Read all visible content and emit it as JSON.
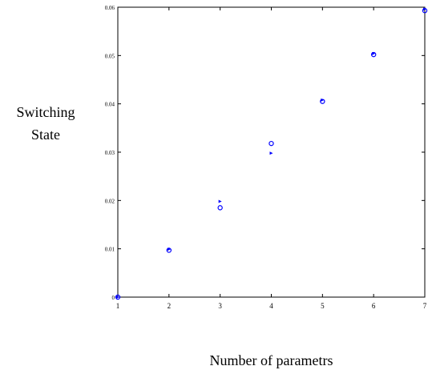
{
  "chart_data": {
    "type": "scatter",
    "title": "",
    "xlabel": "Number of parametrs",
    "ylabel_lines": [
      "Switching",
      "State"
    ],
    "xlim": [
      1,
      7
    ],
    "ylim": [
      0,
      0.06
    ],
    "x_ticks": [
      1,
      2,
      3,
      4,
      5,
      6,
      7
    ],
    "y_ticks": [
      0,
      0.01,
      0.02,
      0.03,
      0.04,
      0.05,
      0.06
    ],
    "y_tick_labels": [
      "0",
      "0.01",
      "0.02",
      "0.03",
      "0.04",
      "0.05",
      "0.06"
    ],
    "grid": false,
    "series": [
      {
        "marker": "o",
        "color": "#0000ff",
        "points": [
          {
            "x": 1,
            "y": 0.0
          },
          {
            "x": 2,
            "y": 0.0097
          },
          {
            "x": 3,
            "y": 0.0185
          },
          {
            "x": 4,
            "y": 0.0318
          },
          {
            "x": 5,
            "y": 0.0405
          },
          {
            "x": 6,
            "y": 0.0502
          },
          {
            "x": 7,
            "y": 0.0593
          }
        ]
      },
      {
        "marker": "triangle",
        "color": "#0000ff",
        "points": [
          {
            "x": 1,
            "y": 0.0
          },
          {
            "x": 2,
            "y": 0.0099
          },
          {
            "x": 3,
            "y": 0.0198
          },
          {
            "x": 4,
            "y": 0.0298
          },
          {
            "x": 5,
            "y": 0.0408
          },
          {
            "x": 6,
            "y": 0.0504
          },
          {
            "x": 7,
            "y": 0.0596
          }
        ]
      }
    ]
  }
}
